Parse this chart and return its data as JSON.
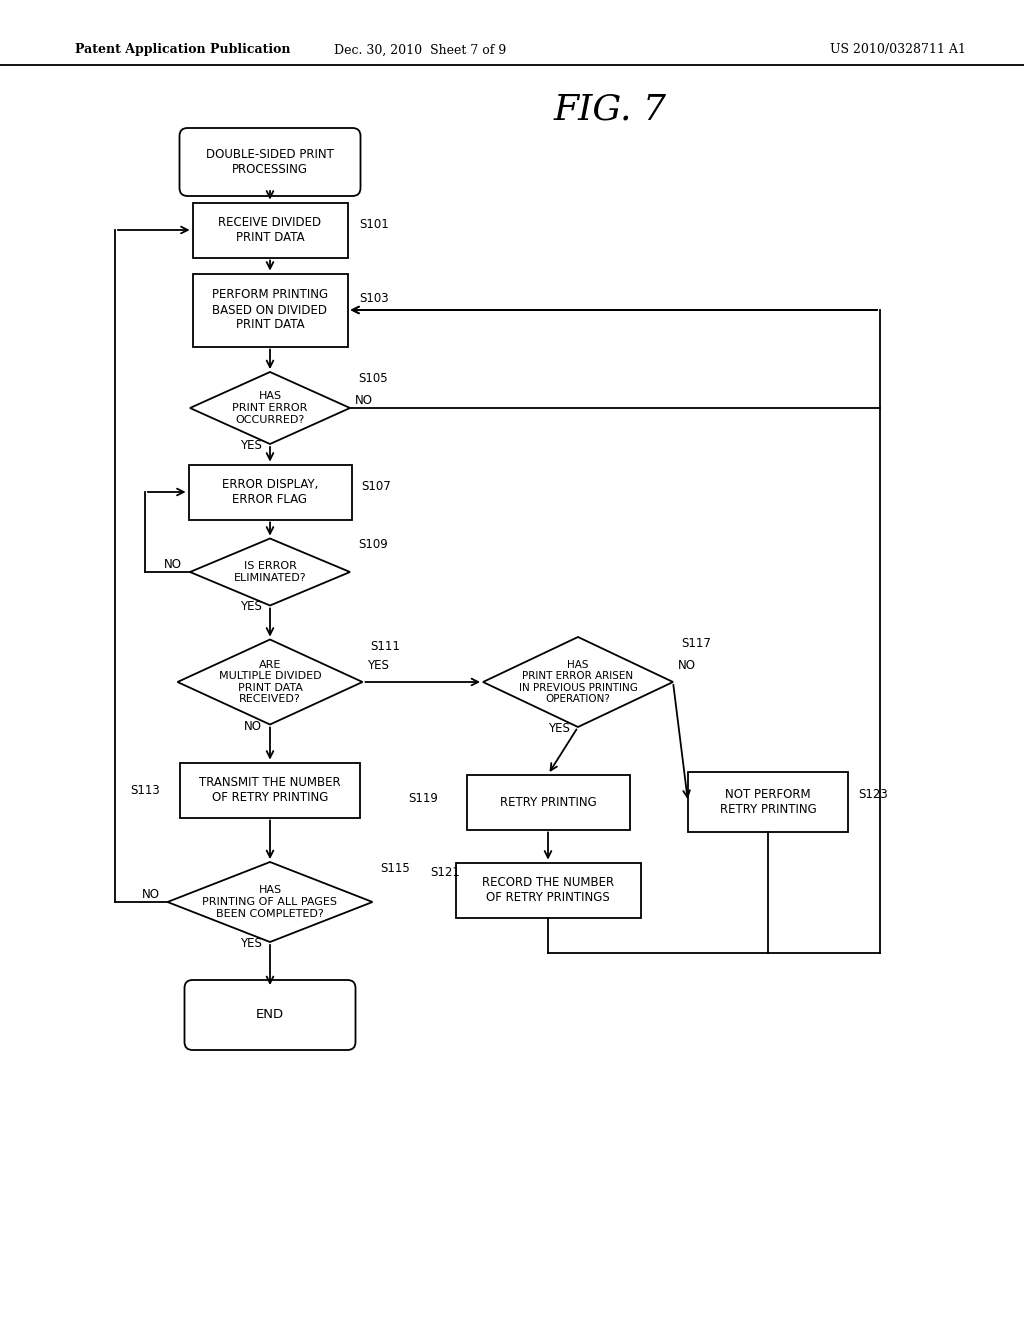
{
  "title": "FIG. 7",
  "header_left": "Patent Application Publication",
  "header_center": "Dec. 30, 2010  Sheet 7 of 9",
  "header_right": "US 2010/0328711 A1",
  "background_color": "#ffffff",
  "line_color": "#000000",
  "text_color": "#000000"
}
